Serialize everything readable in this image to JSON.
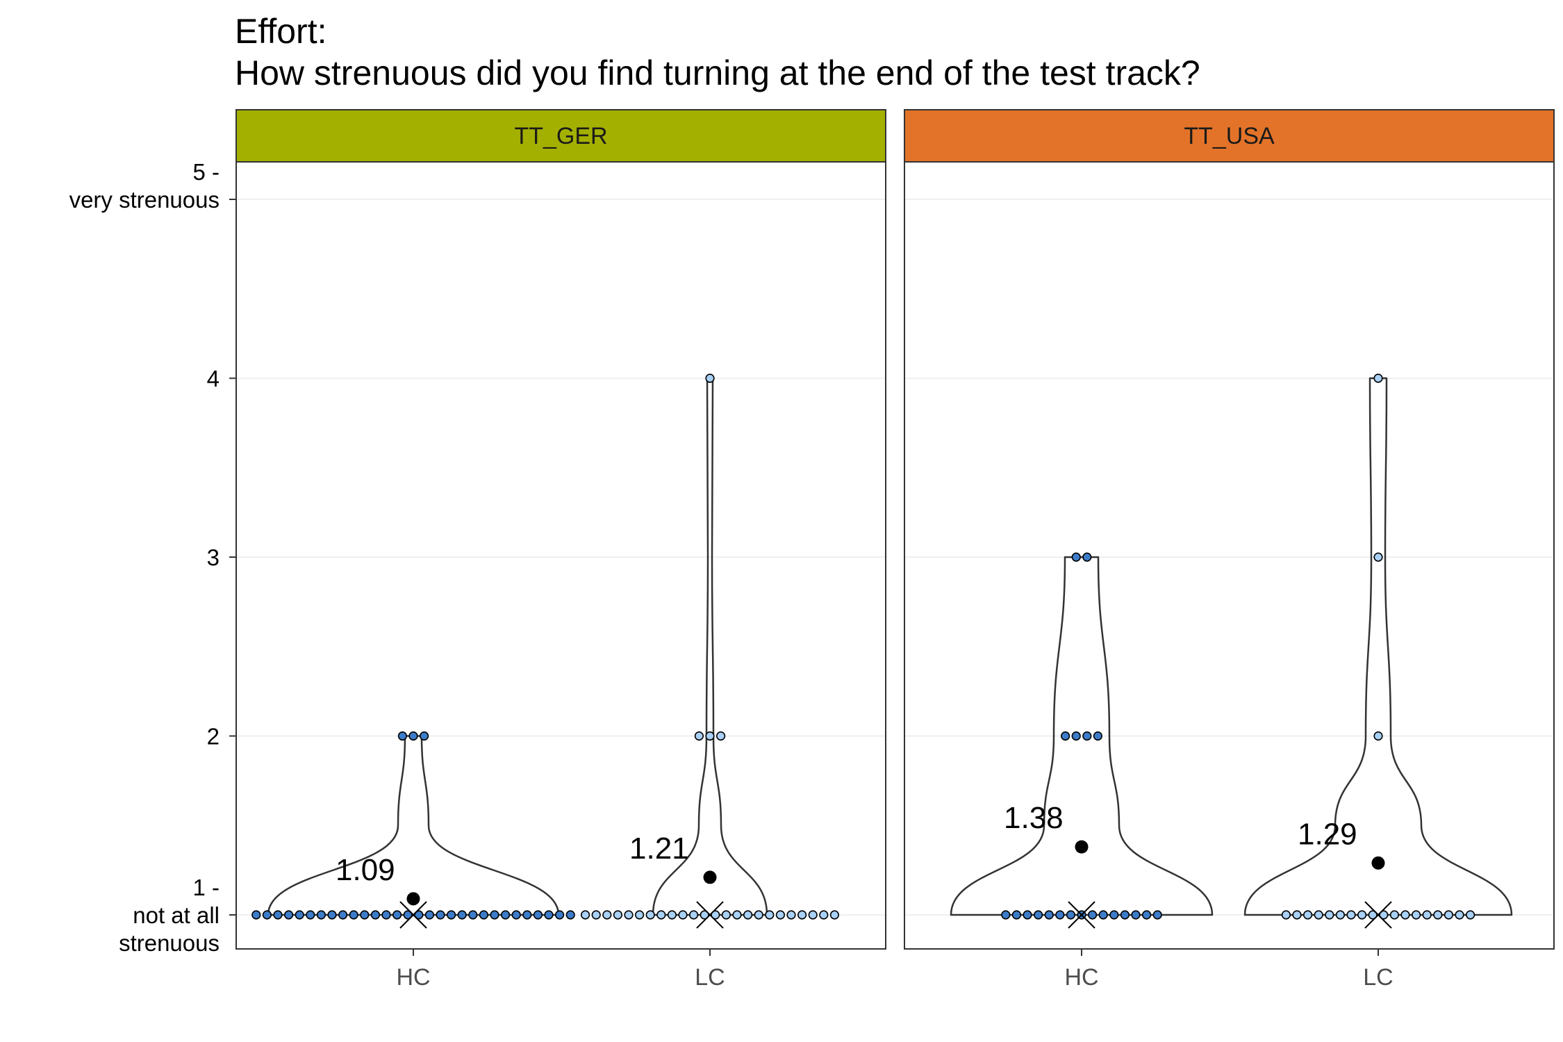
{
  "title_line1": "Effort:",
  "title_line2": "How strenuous did you find turning at the end of the test track?",
  "colors": {
    "TT_GER": "#a3b000",
    "TT_USA": "#e37329",
    "HC_point": "#3d7cc9",
    "LC_point": "#a9d0f5",
    "grid": "#ebebeb",
    "axis": "#333333"
  },
  "chart_data": {
    "type": "violin",
    "y_axis": {
      "ylim": [
        0.8,
        5.2
      ],
      "ticks": [
        {
          "value": 1,
          "label_lines": [
            "1 -",
            "not at all",
            "strenuous"
          ]
        },
        {
          "value": 2,
          "label_lines": [
            "2"
          ]
        },
        {
          "value": 3,
          "label_lines": [
            "3"
          ]
        },
        {
          "value": 4,
          "label_lines": [
            "4"
          ]
        },
        {
          "value": 5,
          "label_lines": [
            "5 -",
            "very strenuous"
          ]
        }
      ]
    },
    "facets": [
      {
        "name": "TT_GER",
        "groups": [
          {
            "category": "HC",
            "mean": 1.09,
            "mean_label": "1.09",
            "median": 1,
            "counts": [
              {
                "value": 1,
                "n": 30
              },
              {
                "value": 2,
                "n": 3
              }
            ]
          },
          {
            "category": "LC",
            "mean": 1.21,
            "mean_label": "1.21",
            "median": 1,
            "counts": [
              {
                "value": 1,
                "n": 24
              },
              {
                "value": 2,
                "n": 3
              },
              {
                "value": 4,
                "n": 1
              }
            ]
          }
        ]
      },
      {
        "name": "TT_USA",
        "groups": [
          {
            "category": "HC",
            "mean": 1.38,
            "mean_label": "1.38",
            "median": 1,
            "counts": [
              {
                "value": 1,
                "n": 15
              },
              {
                "value": 2,
                "n": 4
              },
              {
                "value": 3,
                "n": 2
              }
            ]
          },
          {
            "category": "LC",
            "mean": 1.29,
            "mean_label": "1.29",
            "median": 1,
            "counts": [
              {
                "value": 1,
                "n": 18
              },
              {
                "value": 2,
                "n": 1
              },
              {
                "value": 3,
                "n": 1
              },
              {
                "value": 4,
                "n": 1
              }
            ]
          }
        ]
      }
    ]
  }
}
